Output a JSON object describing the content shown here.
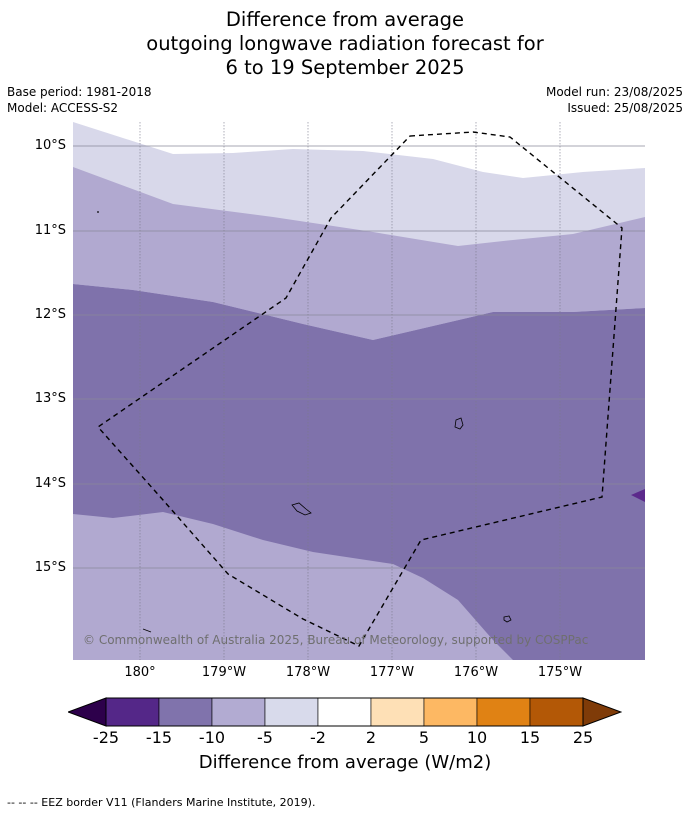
{
  "title": {
    "line1": "Difference from average",
    "line2": "outgoing longwave radiation forecast for",
    "line3": "6 to 19 September 2025"
  },
  "meta": {
    "base_period": "Base period: 1981-2018",
    "model": "Model: ACCESS-S2",
    "model_run": "Model run: 23/08/2025",
    "issued": "Issued: 25/08/2025"
  },
  "map": {
    "lat_labels": [
      "10°S",
      "11°S",
      "12°S",
      "13°S",
      "14°S",
      "15°S"
    ],
    "lon_labels": [
      "180°",
      "179°W",
      "178°W",
      "177°W",
      "176°W",
      "175°W"
    ],
    "copyright": "© Commonwealth of Australia 2025, Bureau of Meteorology, supported by COSPPac",
    "colors": {
      "minus15_to_minus10": "#7f72ab",
      "minus10_to_minus5": "#b1a9d0",
      "minus5_to_minus2": "#d8d8ea",
      "minus2_to_2": "#ffffff",
      "minus25_to_minus15": "#5c2a8c",
      "eez_border": "#000000"
    }
  },
  "colorbar": {
    "ticks": [
      "-25",
      "-15",
      "-10",
      "-5",
      "-2",
      "2",
      "5",
      "10",
      "15",
      "25"
    ],
    "colors": [
      "#2d004b",
      "#542788",
      "#8073ac",
      "#b2abd2",
      "#d8daeb",
      "#ffffff",
      "#fee0b6",
      "#fdb863",
      "#e08214",
      "#b35806",
      "#7f3b08"
    ],
    "label": "Difference from average (W/m2)"
  },
  "footer": "--  --  -- EEZ border V11 (Flanders Marine Institute, 2019)."
}
